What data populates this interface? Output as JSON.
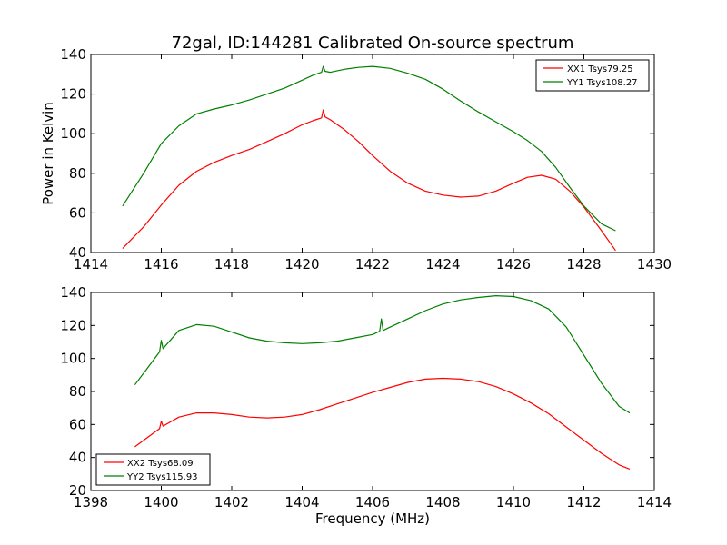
{
  "figure": {
    "title": "72gal, ID:144281 Calibrated On-source spectrum"
  },
  "chart_data": [
    {
      "type": "line",
      "title": "72gal, ID:144281 Calibrated On-source spectrum",
      "xlabel": "",
      "ylabel": "Power in Kelvin",
      "xlim": [
        1414,
        1430
      ],
      "ylim": [
        40,
        140
      ],
      "xticks": [
        1414,
        1416,
        1418,
        1420,
        1422,
        1424,
        1426,
        1428,
        1430
      ],
      "yticks": [
        40,
        60,
        80,
        100,
        120,
        140
      ],
      "grid": false,
      "legend_position": "upper right",
      "series": [
        {
          "name": "XX1 Tsys79.25",
          "color": "#ff0000",
          "x": [
            1414.9,
            1415.5,
            1416,
            1416.5,
            1417,
            1417.5,
            1418,
            1418.5,
            1419,
            1419.5,
            1420,
            1420.3,
            1420.55,
            1420.6,
            1420.65,
            1420.8,
            1421.2,
            1421.6,
            1422,
            1422.5,
            1423,
            1423.5,
            1424,
            1424.5,
            1425,
            1425.5,
            1426,
            1426.4,
            1426.8,
            1427.2,
            1427.6,
            1428,
            1428.5,
            1428.9
          ],
          "y": [
            42,
            53,
            64,
            74,
            81,
            85.5,
            89,
            92,
            96,
            100,
            104.5,
            106.5,
            108,
            112,
            108.5,
            107,
            102,
            96,
            89,
            81,
            75,
            71,
            69,
            68,
            68.5,
            71,
            75,
            78,
            79,
            77,
            71,
            63,
            51,
            41
          ]
        },
        {
          "name": "YY1 Tsys108.27",
          "color": "#008000",
          "x": [
            1414.9,
            1415.5,
            1416,
            1416.5,
            1417,
            1417.5,
            1418,
            1418.5,
            1419,
            1419.5,
            1420,
            1420.3,
            1420.55,
            1420.6,
            1420.65,
            1420.8,
            1421.2,
            1421.6,
            1422,
            1422.5,
            1423,
            1423.5,
            1424,
            1424.5,
            1425,
            1425.5,
            1426,
            1426.4,
            1426.8,
            1427.2,
            1427.6,
            1428,
            1428.5,
            1428.9
          ],
          "y": [
            63.5,
            80,
            95,
            104,
            110,
            112.5,
            114.5,
            117,
            120,
            123,
            127,
            129.5,
            131,
            134,
            131.5,
            131,
            132.5,
            133.5,
            134,
            133,
            130.5,
            127.5,
            122.5,
            116.5,
            111,
            106,
            101,
            96.5,
            91,
            83,
            73,
            63.5,
            54.5,
            51
          ]
        }
      ]
    },
    {
      "type": "line",
      "title": "",
      "xlabel": "Frequency (MHz)",
      "ylabel": "",
      "xlim": [
        1398,
        1414
      ],
      "ylim": [
        20,
        140
      ],
      "xticks": [
        1398,
        1400,
        1402,
        1404,
        1406,
        1408,
        1410,
        1412,
        1414
      ],
      "yticks": [
        20,
        40,
        60,
        80,
        100,
        120,
        140
      ],
      "grid": false,
      "legend_position": "lower left",
      "series": [
        {
          "name": "XX2 Tsys68.09",
          "color": "#ff0000",
          "x": [
            1399.25,
            1399.6,
            1399.95,
            1400,
            1400.05,
            1400.5,
            1401,
            1401.5,
            1402,
            1402.5,
            1403,
            1403.5,
            1404,
            1404.5,
            1405,
            1405.5,
            1406,
            1406.5,
            1407,
            1407.5,
            1408,
            1408.5,
            1409,
            1409.5,
            1410,
            1410.5,
            1411,
            1411.5,
            1412,
            1412.5,
            1413,
            1413.3
          ],
          "y": [
            46.5,
            52,
            57.5,
            62,
            59,
            64.5,
            67,
            67,
            66,
            64.5,
            64,
            64.5,
            66,
            69,
            72.5,
            76,
            79.5,
            82.5,
            85.5,
            87.5,
            88,
            87.5,
            86,
            83,
            78.5,
            73,
            66.5,
            58.5,
            50.5,
            42.5,
            35.5,
            33
          ]
        },
        {
          "name": "YY2 Tsys115.93",
          "color": "#008000",
          "x": [
            1399.25,
            1399.6,
            1399.95,
            1400,
            1400.05,
            1400.5,
            1401,
            1401.5,
            1402,
            1402.5,
            1403,
            1403.5,
            1404,
            1404.5,
            1405,
            1405.5,
            1406,
            1406.2,
            1406.25,
            1406.3,
            1406.5,
            1407,
            1407.5,
            1408,
            1408.5,
            1409,
            1409.5,
            1410,
            1410.5,
            1411,
            1411.5,
            1412,
            1412.5,
            1413,
            1413.3
          ],
          "y": [
            84,
            94,
            104,
            111,
            106,
            117,
            120.5,
            119.5,
            116,
            112.5,
            110.5,
            109.5,
            109,
            109.5,
            110.5,
            112.5,
            114.5,
            116.5,
            124,
            117,
            119,
            124,
            129,
            133,
            135.5,
            137,
            138,
            137.5,
            135,
            130,
            119,
            102,
            85,
            71,
            67
          ]
        }
      ]
    }
  ]
}
